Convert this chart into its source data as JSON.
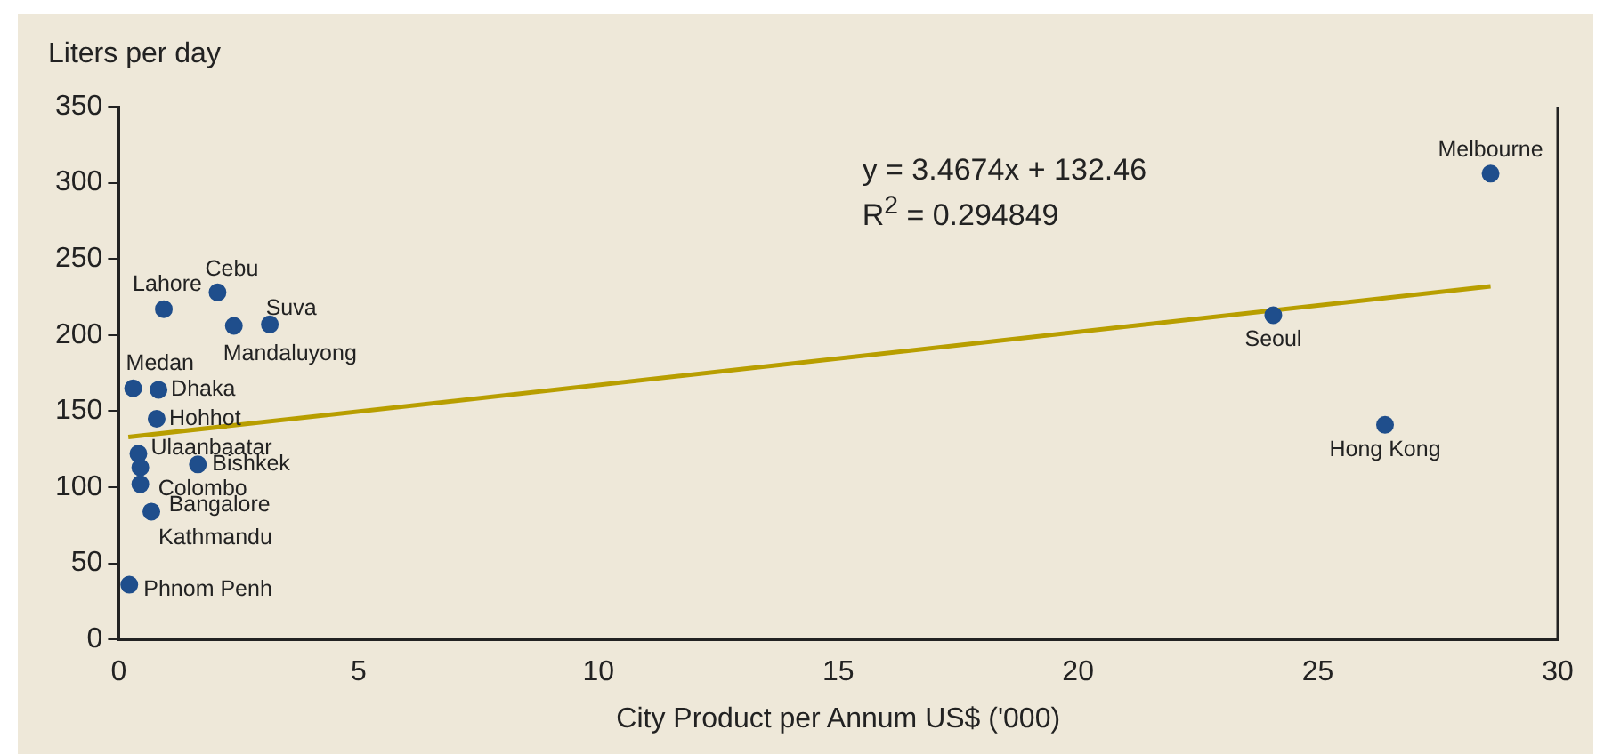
{
  "chart_data": {
    "type": "scatter",
    "xlabel": "City Product per Annum US$ ('000)",
    "ylabel": "Liters per day",
    "xlim": [
      0,
      30
    ],
    "xticks": [
      0,
      5,
      10,
      15,
      20,
      25,
      30
    ],
    "ylim": [
      0,
      350
    ],
    "yticks": [
      0,
      50,
      100,
      150,
      200,
      250,
      300,
      350
    ],
    "grid": false,
    "legend": false,
    "marker": "circle",
    "series": [
      {
        "color": "#1f4e8c",
        "x": [
          0.94,
          2.06,
          3.15,
          2.4,
          0.3,
          0.83,
          0.79,
          0.41,
          0.45,
          0.45,
          1.65,
          0.68,
          0.22,
          24.07,
          26.4,
          28.6
        ],
        "values": [
          217,
          228,
          207,
          206,
          165,
          164,
          145,
          122,
          113,
          102,
          115,
          84,
          36,
          213,
          141,
          306
        ]
      },
      {
        "type": "line",
        "color": "#b89e00",
        "x": [
          0.2,
          28.6
        ],
        "values": [
          133,
          232
        ],
        "marker": "none"
      }
    ],
    "annotations": [
      "y = 3.4674x + 132.46",
      "R$^{2}$ = 0.294849",
      {
        "text": "Lahore",
        "x": 0.94,
        "y": 217
      },
      {
        "text": "Cebu",
        "x": 2.06,
        "y": 228
      },
      {
        "text": "Suva",
        "x": 3.15,
        "y": 207
      },
      {
        "text": "Mandaluyong",
        "x": 2.4,
        "y": 206
      },
      {
        "text": "Medan",
        "x": 0.3,
        "y": 165
      },
      {
        "text": "Dhaka",
        "x": 0.83,
        "y": 164
      },
      {
        "text": "Hohhot",
        "x": 0.79,
        "y": 145
      },
      {
        "text": "Ulaanbaatar",
        "x": 0.41,
        "y": 122
      },
      {
        "text": "Colombo",
        "x": 0.45,
        "y": 113
      },
      {
        "text": "Bangalore",
        "x": 0.45,
        "y": 102
      },
      {
        "text": "Bishkek",
        "x": 1.65,
        "y": 115
      },
      {
        "text": "Kathmandu",
        "x": 0.68,
        "y": 84
      },
      {
        "text": "Phnom Penh",
        "x": 0.22,
        "y": 36
      },
      {
        "text": "Seoul",
        "x": 24.07,
        "y": 213
      },
      {
        "text": "Hong Kong",
        "x": 26.4,
        "y": 141
      },
      {
        "text": "Melbourne",
        "x": 28.6,
        "y": 306
      }
    ]
  }
}
